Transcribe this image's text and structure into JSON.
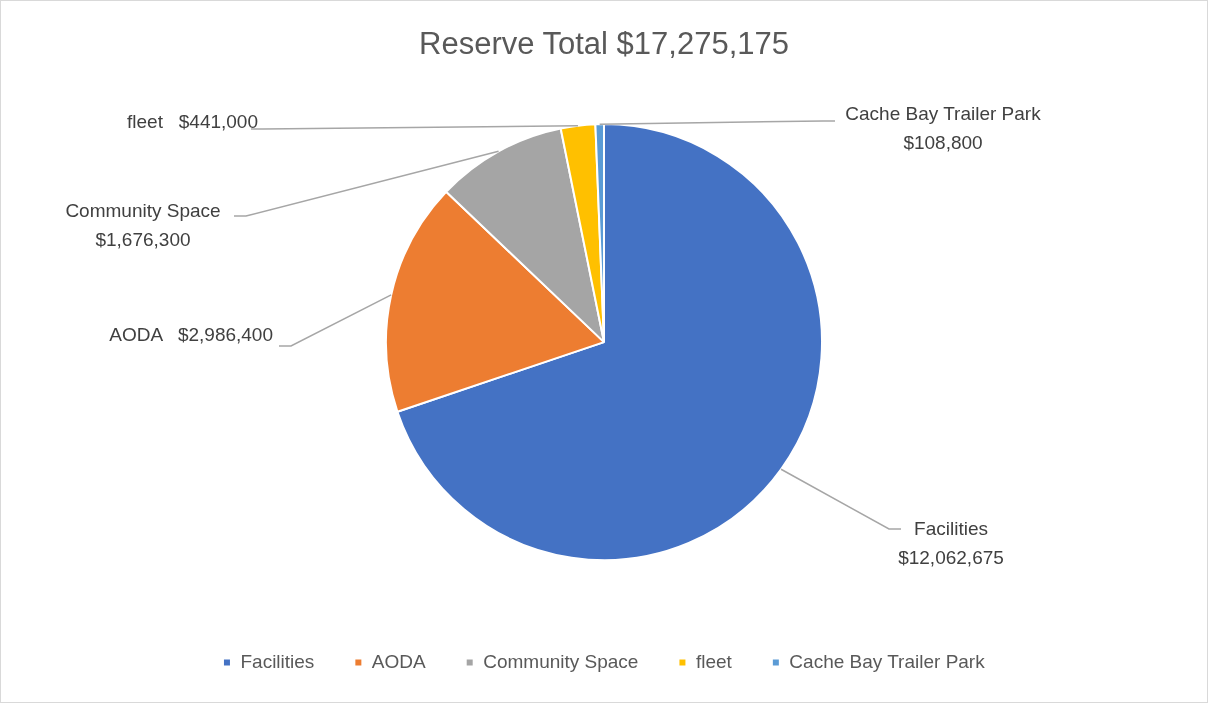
{
  "chart_data": {
    "type": "pie",
    "title": "Reserve Total $17,275,175",
    "categories": [
      "Facilities",
      "AODA",
      "Community Space",
      "fleet",
      "Cache Bay Trailer Park"
    ],
    "values": [
      12062675,
      2986400,
      1676300,
      441000,
      108800
    ],
    "colors": [
      "#4472c4",
      "#ed7d31",
      "#a5a5a5",
      "#ffc000",
      "#5b9bd5"
    ],
    "value_labels": [
      "$12,062,675",
      "$2,986,400",
      "$1,676,300",
      "$441,000",
      "$108,800"
    ],
    "legend": "bottom"
  }
}
